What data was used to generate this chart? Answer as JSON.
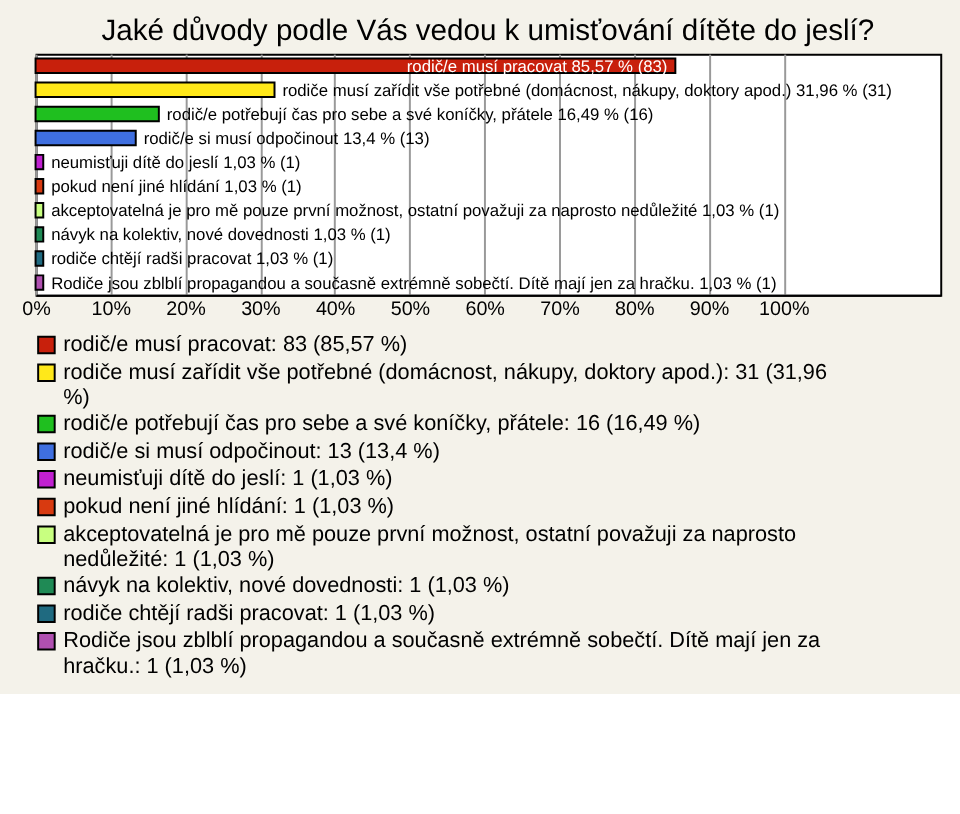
{
  "chart_data": {
    "type": "bar",
    "orientation": "horizontal",
    "stacked": true,
    "title": "Jaké důvody podle Vás vedou k umisťování dítěte do jeslí?",
    "categories": [
      null,
      null,
      null,
      null,
      null,
      null,
      null,
      null,
      null,
      null
    ],
    "series": [
      {
        "name": "rodič/e musí pracovat: 83 (85,57 %)",
        "color": "#c8200c",
        "values": [
          85.57,
          null,
          null,
          null,
          null,
          null,
          null,
          null,
          null,
          null
        ],
        "value_labels": [
          "rodič/e musí pracovat 85,57 % (83)",
          null,
          null,
          null,
          null,
          null,
          null,
          null,
          null,
          null
        ]
      },
      {
        "name": "rodiče musí zařídit vše potřebné (domácnost, nákupy, doktory apod.): 31 (31,96 %)",
        "color": "#ffe81a",
        "values": [
          null,
          31.96,
          null,
          null,
          null,
          null,
          null,
          null,
          null,
          null
        ],
        "value_labels": [
          null,
          "rodiče musí zařídit vše potřebné (domácnost, nákupy, doktory apod.) 31,96 % (31)",
          null,
          null,
          null,
          null,
          null,
          null,
          null,
          null
        ]
      },
      {
        "name": "rodič/e potřebují čas pro sebe a své koníčky, přátele: 16 (16,49 %)",
        "color": "#1fbf1f",
        "values": [
          null,
          null,
          16.49,
          null,
          null,
          null,
          null,
          null,
          null,
          null
        ],
        "value_labels": [
          null,
          null,
          "rodič/e potřebují čas pro sebe a své koníčky, přátele 16,49 % (16)",
          null,
          null,
          null,
          null,
          null,
          null,
          null
        ]
      },
      {
        "name": "rodič/e si musí odpočinout: 13 (13,4 %)",
        "color": "#3f6fe0",
        "values": [
          null,
          null,
          null,
          13.4,
          null,
          null,
          null,
          null,
          null,
          null
        ],
        "value_labels": [
          null,
          null,
          null,
          "rodič/e si musí odpočinout 13,4 % (13)",
          null,
          null,
          null,
          null,
          null,
          null
        ]
      },
      {
        "name": "neumisťuji dítě do jeslí: 1 (1,03 %)",
        "color": "#c020d0",
        "values": [
          null,
          null,
          null,
          null,
          1.03,
          null,
          null,
          null,
          null,
          null
        ],
        "value_labels": [
          null,
          null,
          null,
          null,
          "neumisťuji dítě do jeslí 1,03 % (1)",
          null,
          null,
          null,
          null,
          null
        ]
      },
      {
        "name": "pokud není jiné hlídání: 1 (1,03 %)",
        "color": "#d83a10",
        "values": [
          null,
          null,
          null,
          null,
          null,
          1.03,
          null,
          null,
          null,
          null
        ],
        "value_labels": [
          null,
          null,
          null,
          null,
          null,
          "pokud není jiné hlídání 1,03 % (1)",
          null,
          null,
          null,
          null
        ]
      },
      {
        "name": "akceptovatelná je pro mě pouze první možnost, ostatní považuji za naprosto nedůležité: 1 (1,03 %)",
        "color": "#c8ff80",
        "values": [
          null,
          null,
          null,
          null,
          null,
          null,
          1.03,
          null,
          null,
          null
        ],
        "value_labels": [
          null,
          null,
          null,
          null,
          null,
          null,
          "akceptovatelná je pro mě pouze první možnost, ostatní považuji za naprosto nedůležité 1,03 % (1)",
          null,
          null,
          null
        ]
      },
      {
        "name": "návyk na kolektiv, nové dovednosti: 1 (1,03 %)",
        "color": "#1f8a55",
        "values": [
          null,
          null,
          null,
          null,
          null,
          null,
          null,
          1.03,
          null,
          null
        ],
        "value_labels": [
          null,
          null,
          null,
          null,
          null,
          null,
          null,
          "návyk na kolektiv, nové dovednosti 1,03 % (1)",
          null,
          null
        ]
      },
      {
        "name": "rodiče chtějí radši pracovat: 1 (1,03 %)",
        "color": "#1f6a80",
        "values": [
          null,
          null,
          null,
          null,
          null,
          null,
          null,
          null,
          1.03,
          null
        ],
        "value_labels": [
          null,
          null,
          null,
          null,
          null,
          null,
          null,
          null,
          "rodiče chtějí radši pracovat 1,03 % (1)",
          null
        ]
      },
      {
        "name": "Rodiče jsou zblblí propagandou a současně extrémně sobečtí. Dítě mají jen za hračku.: 1 (1,03 %)",
        "color": "#b050b0",
        "values": [
          null,
          null,
          null,
          null,
          null,
          null,
          null,
          null,
          null,
          1.03
        ],
        "value_labels": [
          null,
          null,
          null,
          null,
          null,
          null,
          null,
          null,
          null,
          "Rodiče jsou zblblí propagandou a současně extrémně sobečtí. Dítě mají jen za hračku. 1,03 % (1)"
        ]
      }
    ],
    "xlim": [
      0,
      121
    ],
    "xticks": [
      {
        "value": 0,
        "label": "0%"
      },
      {
        "value": 10,
        "label": "10%"
      },
      {
        "value": 20,
        "label": "20%"
      },
      {
        "value": 30,
        "label": "30%"
      },
      {
        "value": 40,
        "label": "40%"
      },
      {
        "value": 50,
        "label": "50%"
      },
      {
        "value": 60,
        "label": "60%"
      },
      {
        "value": 70,
        "label": "70%"
      },
      {
        "value": 80,
        "label": "80%"
      },
      {
        "value": 90,
        "label": "90%"
      },
      {
        "value": 100,
        "label": "100%"
      }
    ],
    "grid": true,
    "legend": "bottom"
  }
}
